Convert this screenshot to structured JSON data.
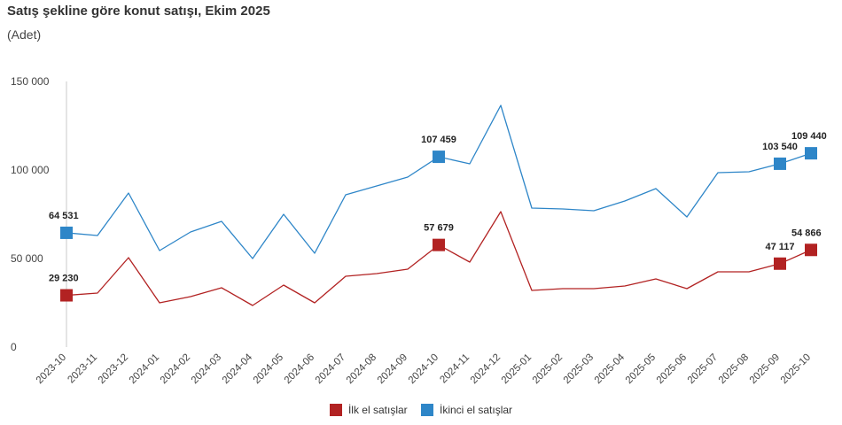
{
  "header": {
    "title": "Satış şekline göre konut satışı, Ekim 2025",
    "subtitle": "(Adet)"
  },
  "chart_data": {
    "type": "line",
    "title": "Satış şekline göre konut satışı, Ekim 2025",
    "subtitle": "(Adet)",
    "ylabel": "",
    "xlabel": "",
    "ylim": [
      0,
      150000
    ],
    "yticks": [
      0,
      50000,
      100000,
      150000
    ],
    "ytick_labels": [
      "0",
      "50 000",
      "100 000",
      "150 000"
    ],
    "grid": false,
    "legend_position": "bottom",
    "x": [
      "2023-10",
      "2023-11",
      "2023-12",
      "2024-01",
      "2024-02",
      "2024-03",
      "2024-04",
      "2024-05",
      "2024-06",
      "2024-07",
      "2024-08",
      "2024-09",
      "2024-10",
      "2024-11",
      "2024-12",
      "2025-01",
      "2025-02",
      "2025-03",
      "2025-04",
      "2025-05",
      "2025-06",
      "2025-07",
      "2025-08",
      "2025-09",
      "2025-10"
    ],
    "series": [
      {
        "name": "İlk el satışlar",
        "color": "#b22222",
        "values": [
          29230,
          30500,
          50500,
          25000,
          28500,
          33500,
          23500,
          35000,
          25000,
          40000,
          41500,
          44000,
          57679,
          48000,
          76500,
          32000,
          33000,
          33000,
          34500,
          38500,
          33000,
          42500,
          42500,
          47117,
          54866
        ],
        "labeled_points": [
          {
            "index": 0,
            "label": "29 230"
          },
          {
            "index": 12,
            "label": "57 679"
          },
          {
            "index": 23,
            "label": "47 117"
          },
          {
            "index": 24,
            "label": "54 866"
          }
        ]
      },
      {
        "name": "İkinci el satışlar",
        "color": "#2e86c8",
        "values": [
          64531,
          63000,
          87000,
          54500,
          65000,
          71000,
          50000,
          75000,
          53000,
          86000,
          91000,
          96000,
          107459,
          103500,
          136500,
          78500,
          78000,
          77000,
          82500,
          89500,
          73500,
          98500,
          99000,
          103540,
          109440
        ],
        "labeled_points": [
          {
            "index": 0,
            "label": "64 531"
          },
          {
            "index": 12,
            "label": "107 459"
          },
          {
            "index": 23,
            "label": "103 540"
          },
          {
            "index": 24,
            "label": "109 440"
          }
        ]
      }
    ]
  }
}
